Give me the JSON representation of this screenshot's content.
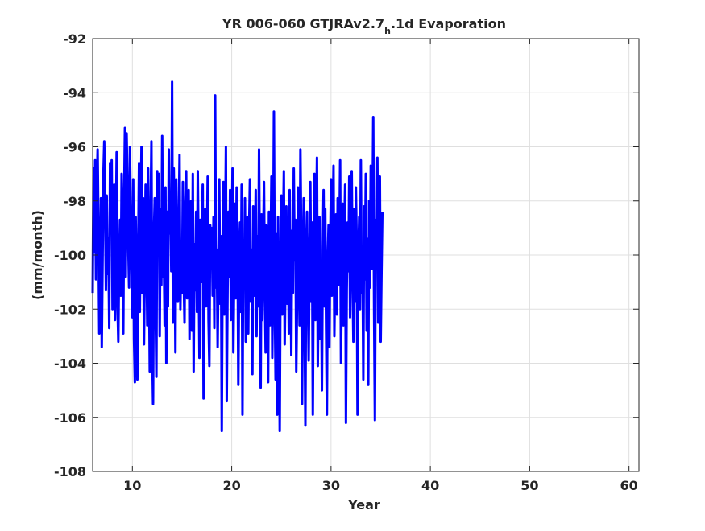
{
  "chart_data": {
    "type": "line",
    "title": {
      "main": "YR 006-060 GTJRAv2.7",
      "subscript": "h",
      "suffix": ".1d Evaporation"
    },
    "xlabel": "Year",
    "ylabel": "(mm/month)",
    "xlim": [
      6,
      61
    ],
    "ylim": [
      -108,
      -92
    ],
    "xticks": [
      10,
      20,
      30,
      40,
      50,
      60
    ],
    "yticks": [
      -108,
      -106,
      -104,
      -102,
      -100,
      -98,
      -96,
      -94,
      -92
    ],
    "xtick_labels": [
      "10",
      "20",
      "30",
      "40",
      "50",
      "60"
    ],
    "ytick_labels": [
      "-108",
      "-106",
      "-104",
      "-102",
      "-100",
      "-98",
      "-96",
      "-94",
      "-92"
    ],
    "grid": true,
    "legend": "none",
    "series": [
      {
        "color": "#0000ff",
        "line_width": 3,
        "samples_per_year": 12,
        "x_start": 6.0,
        "values": [
          -101.4,
          -96.8,
          -99.9,
          -96.5,
          -100.9,
          -97.6,
          -96.1,
          -99.2,
          -102.9,
          -100.5,
          -97.9,
          -103.4,
          -100.2,
          -97.0,
          -95.8,
          -98.1,
          -101.3,
          -97.8,
          -100.7,
          -99.4,
          -102.7,
          -96.6,
          -99.0,
          -96.5,
          -102.0,
          -98.9,
          -97.4,
          -102.4,
          -99.6,
          -96.2,
          -101.8,
          -103.2,
          -100.1,
          -98.7,
          -101.5,
          -97.0,
          -99.3,
          -102.9,
          -98.0,
          -95.3,
          -100.8,
          -95.5,
          -97.3,
          -99.6,
          -101.2,
          -96.0,
          -98.5,
          -100.4,
          -102.3,
          -97.2,
          -103.1,
          -104.7,
          -98.6,
          -101.0,
          -104.6,
          -99.9,
          -96.6,
          -102.1,
          -98.8,
          -96.0,
          -101.4,
          -97.9,
          -103.3,
          -100.5,
          -97.4,
          -99.8,
          -102.6,
          -96.8,
          -100.3,
          -104.3,
          -98.7,
          -95.8,
          -103.5,
          -105.5,
          -99.2,
          -97.9,
          -101.7,
          -104.5,
          -96.9,
          -99.5,
          -97.0,
          -103.0,
          -98.3,
          -101.1,
          -95.6,
          -100.8,
          -99.9,
          -102.6,
          -97.5,
          -104.0,
          -98.4,
          -101.9,
          -96.1,
          -99.2,
          -97.8,
          -100.6,
          -93.6,
          -102.5,
          -96.8,
          -99.4,
          -103.6,
          -97.2,
          -100.3,
          -101.7,
          -98.9,
          -96.3,
          -102.0,
          -99.7,
          -101.4,
          -97.3,
          -100.8,
          -102.5,
          -98.2,
          -96.9,
          -101.6,
          -99.1,
          -97.6,
          -103.1,
          -100.5,
          -98.0,
          -102.8,
          -97.0,
          -104.3,
          -99.6,
          -101.3,
          -98.4,
          -102.1,
          -96.9,
          -100.2,
          -103.8,
          -98.7,
          -101.0,
          -99.5,
          -97.4,
          -105.3,
          -100.6,
          -98.3,
          -101.9,
          -99.8,
          -97.1,
          -102.4,
          -104.1,
          -98.9,
          -100.3,
          -99.0,
          -101.5,
          -98.6,
          -102.7,
          -94.1,
          -101.2,
          -99.8,
          -103.4,
          -100.4,
          -97.2,
          -101.8,
          -99.3,
          -106.5,
          -100.1,
          -97.3,
          -102.2,
          -99.6,
          -96.0,
          -105.4,
          -101.3,
          -98.4,
          -100.8,
          -97.6,
          -102.4,
          -99.9,
          -96.8,
          -103.6,
          -100.5,
          -98.1,
          -101.6,
          -97.5,
          -99.3,
          -104.8,
          -100.6,
          -98.8,
          -102.1,
          -97.4,
          -105.9,
          -99.5,
          -101.0,
          -97.9,
          -103.2,
          -100.3,
          -98.6,
          -102.9,
          -99.1,
          -97.2,
          -101.7,
          -99.8,
          -104.4,
          -98.2,
          -101.5,
          -100.4,
          -97.6,
          -103.0,
          -99.3,
          -101.9,
          -96.1,
          -100.7,
          -104.9,
          -98.5,
          -102.4,
          -99.7,
          -97.3,
          -101.2,
          -103.6,
          -98.9,
          -100.1,
          -104.7,
          -98.4,
          -102.6,
          -99.9,
          -97.1,
          -103.8,
          -100.8,
          -94.7,
          -101.5,
          -104.6,
          -99.2,
          -105.9,
          -98.6,
          -101.0,
          -106.5,
          -100.3,
          -97.8,
          -102.2,
          -99.4,
          -96.9,
          -103.3,
          -100.7,
          -98.2,
          -101.8,
          -99.0,
          -102.9,
          -97.6,
          -100.5,
          -103.7,
          -99.1,
          -101.4,
          -96.8,
          -100.2,
          -98.7,
          -104.3,
          -101.6,
          -97.5,
          -99.8,
          -102.6,
          -96.1,
          -99.4,
          -105.5,
          -100.8,
          -97.9,
          -102.0,
          -106.3,
          -99.6,
          -98.4,
          -101.3,
          -103.9,
          -100.1,
          -97.3,
          -101.7,
          -98.8,
          -105.9,
          -100.3,
          -97.0,
          -102.4,
          -99.2,
          -96.4,
          -104.1,
          -101.0,
          -98.6,
          -103.1,
          -100.5,
          -105.0,
          -99.8,
          -97.6,
          -101.9,
          -98.3,
          -102.7,
          -105.9,
          -100.2,
          -98.9,
          -103.4,
          -99.6,
          -97.2,
          -101.5,
          -99.1,
          -96.7,
          -103.0,
          -100.4,
          -98.5,
          -102.2,
          -97.9,
          -101.1,
          -99.7,
          -96.5,
          -104.0,
          -100.9,
          -98.1,
          -102.6,
          -99.4,
          -97.4,
          -106.2,
          -101.3,
          -98.8,
          -100.6,
          -97.1,
          -102.3,
          -99.0,
          -96.9,
          -100.8,
          -103.2,
          -98.3,
          -101.7,
          -97.5,
          -99.6,
          -105.9,
          -100.2,
          -98.6,
          -102.0,
          -96.5,
          -101.4,
          -99.9,
          -104.6,
          -98.2,
          -100.9,
          -97.0,
          -102.8,
          -99.4,
          -104.8,
          -98.0,
          -101.2,
          -96.7,
          -100.5,
          -99.1,
          -94.9,
          -101.9,
          -106.1,
          -98.7,
          -100.3,
          -96.4,
          -102.5,
          -99.8,
          -97.1,
          -103.2,
          -100.6,
          -98.4
        ]
      }
    ]
  }
}
